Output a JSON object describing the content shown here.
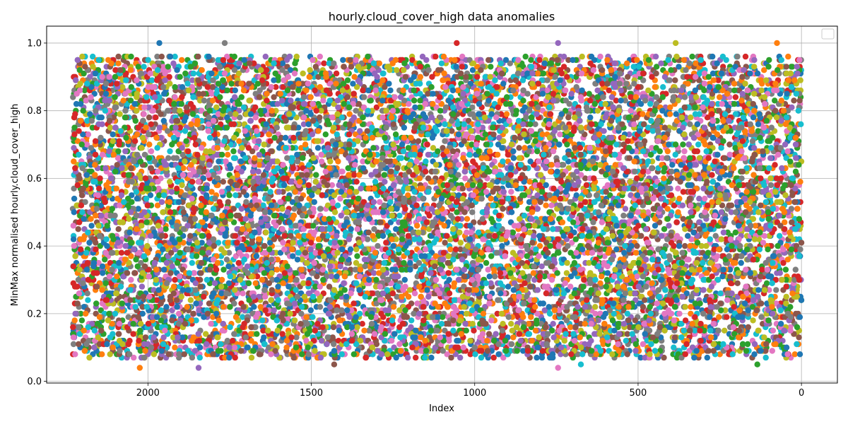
{
  "chart_data": {
    "type": "scatter",
    "title": "hourly.cloud_cover_high data anomalies",
    "xlabel": "Index",
    "ylabel": "MinMax normalised hourly.cloud_cover_high",
    "xlim": [
      2310,
      -110
    ],
    "ylim": [
      -0.005,
      1.05
    ],
    "x_inverted": true,
    "x_ticks": [
      2000,
      1500,
      1000,
      500,
      0
    ],
    "y_ticks": [
      0.0,
      0.2,
      0.4,
      0.6,
      0.8,
      1.0
    ],
    "x_tick_labels": [
      "2000",
      "1500",
      "1000",
      "500",
      "0"
    ],
    "y_tick_labels": [
      "0.0",
      "0.2",
      "0.4",
      "0.6",
      "0.8",
      "1.0"
    ],
    "grid": true,
    "legend": "top-right",
    "legend_entries": [],
    "x_range": [
      0,
      2230
    ],
    "y_range": [
      0.04,
      1.0
    ],
    "series_colors": [
      "#1f77b4",
      "#ff7f0e",
      "#2ca02c",
      "#d62728",
      "#9467bd",
      "#8c564b",
      "#e377c2",
      "#7f7f7f",
      "#bcbd22",
      "#17becf"
    ],
    "notable_points": [
      {
        "x": 2025,
        "y": 0.04
      },
      {
        "x": 1845,
        "y": 0.04
      },
      {
        "x": 1765,
        "y": 1.0
      },
      {
        "x": 1965,
        "y": 1.0
      },
      {
        "x": 1055,
        "y": 1.0
      },
      {
        "x": 745,
        "y": 0.04
      },
      {
        "x": 675,
        "y": 0.05
      },
      {
        "x": 135,
        "y": 0.05
      },
      {
        "x": 1430,
        "y": 0.05
      },
      {
        "x": 385,
        "y": 1.0
      },
      {
        "x": 75,
        "y": 1.0
      },
      {
        "x": 745,
        "y": 1.0
      }
    ]
  }
}
